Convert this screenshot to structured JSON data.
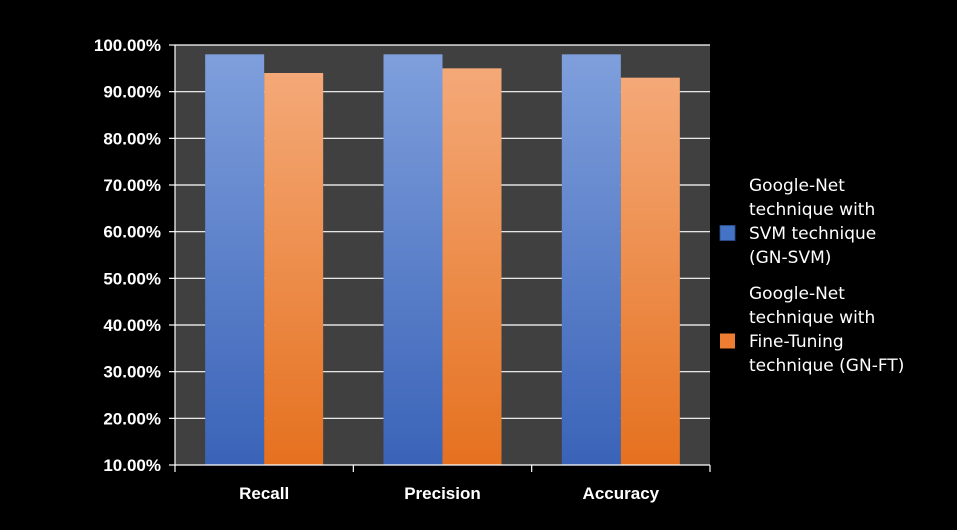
{
  "chart_data": {
    "type": "bar",
    "categories": [
      "Recall",
      "Precision",
      "Accuracy"
    ],
    "series": [
      {
        "name": "Google-Net technique with SVM technique (GN-SVM)",
        "legend_lines": [
          "Google-Net",
          "technique with",
          "SVM technique",
          "(GN-SVM)"
        ],
        "values": [
          0.98,
          0.98,
          0.98
        ],
        "color": "#4472c4"
      },
      {
        "name": "Google-Net technique with Fine-Tuning technique (GN-FT)",
        "legend_lines": [
          "Google-Net",
          "technique with",
          "Fine-Tuning",
          "technique (GN-FT)"
        ],
        "values": [
          0.94,
          0.95,
          0.93
        ],
        "color": "#ed7d31"
      }
    ],
    "yticks": [
      "100.00%",
      "90.00%",
      "80.00%",
      "70.00%",
      "60.00%",
      "50.00%",
      "40.00%",
      "30.00%",
      "20.00%",
      "10.00%"
    ],
    "ylim": [
      0.1,
      1.0
    ],
    "grid": true,
    "legend_position": "right",
    "background": "#000000",
    "plot_background": "#404040"
  }
}
